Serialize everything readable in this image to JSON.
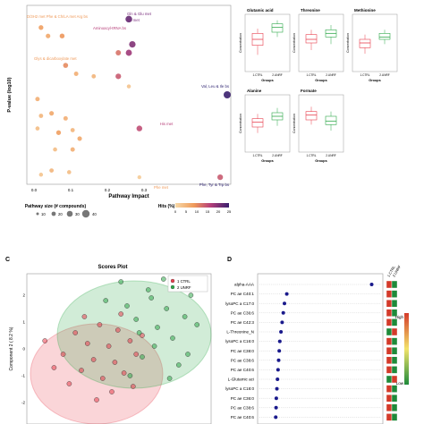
{
  "colors": {
    "ctrl": "#e8404f",
    "unrf": "#2fa84a",
    "dot_blue": "#1a1a8c",
    "heat_high": "#d43a2a",
    "heat_low": "#1e8a3a"
  },
  "chart_data": [
    {
      "panel": "A",
      "type": "scatter",
      "title": "",
      "xlabel": "Pathway Impact",
      "ylabel": "P-value (log10)",
      "xlim": [
        0,
        0.55
      ],
      "xticks": [
        "0.0",
        "0.1",
        "0.2",
        "0.3"
      ],
      "legend_size_title": "Pathway size (# compounds)",
      "legend_sizes": [
        "10",
        "20",
        "30",
        "40"
      ],
      "legend_color_title": "Hits (%)",
      "legend_color_ticks": [
        "0",
        "5",
        "10",
        "15",
        "20",
        "25"
      ],
      "annotations": [
        "D/3H2 met Phe & Ch/LA met Arg bs",
        "Gln & Glu met",
        "N2 met",
        "Aminoacyl-tRNA bs",
        "Glys & dicarboxylate met",
        "Val, Leu & Ile bs",
        "His met",
        "Phe met",
        "Phe, Tyr & Trp bs"
      ],
      "points": [
        {
          "x": 0.02,
          "y": 1.8,
          "hits": 8
        },
        {
          "x": 0.04,
          "y": 1.7,
          "hits": 7
        },
        {
          "x": 0.08,
          "y": 1.7,
          "hits": 9
        },
        {
          "x": 0.27,
          "y": 1.9,
          "hits": 22
        },
        {
          "x": 0.28,
          "y": 1.6,
          "hits": 20
        },
        {
          "x": 0.27,
          "y": 1.5,
          "hits": 18
        },
        {
          "x": 0.24,
          "y": 1.5,
          "hits": 12
        },
        {
          "x": 0.09,
          "y": 1.35,
          "hits": 10
        },
        {
          "x": 0.12,
          "y": 1.25,
          "hits": 6
        },
        {
          "x": 0.17,
          "y": 1.22,
          "hits": 5
        },
        {
          "x": 0.24,
          "y": 1.22,
          "hits": 14
        },
        {
          "x": 0.27,
          "y": 1.1,
          "hits": 3
        },
        {
          "x": 0.55,
          "y": 1.0,
          "hits": 25
        },
        {
          "x": 0.01,
          "y": 0.95,
          "hits": 6
        },
        {
          "x": 0.02,
          "y": 0.75,
          "hits": 5
        },
        {
          "x": 0.05,
          "y": 0.78,
          "hits": 7
        },
        {
          "x": 0.09,
          "y": 0.72,
          "hits": 6
        },
        {
          "x": 0.01,
          "y": 0.6,
          "hits": 4
        },
        {
          "x": 0.07,
          "y": 0.55,
          "hits": 8
        },
        {
          "x": 0.11,
          "y": 0.58,
          "hits": 5
        },
        {
          "x": 0.13,
          "y": 0.48,
          "hits": 7
        },
        {
          "x": 0.3,
          "y": 0.6,
          "hits": 15
        },
        {
          "x": 0.06,
          "y": 0.35,
          "hits": 4
        },
        {
          "x": 0.11,
          "y": 0.35,
          "hits": 6
        },
        {
          "x": 0.05,
          "y": 0.1,
          "hits": 5
        },
        {
          "x": 0.1,
          "y": 0.08,
          "hits": 4
        },
        {
          "x": 0.02,
          "y": 0.05,
          "hits": 3
        },
        {
          "x": 0.3,
          "y": 0.02,
          "hits": 2
        },
        {
          "x": 0.53,
          "y": 0.02,
          "hits": 14
        }
      ]
    },
    {
      "panel": "B",
      "type": "box",
      "plots": [
        {
          "title": "Glutamic acid",
          "xlabel": "Groups",
          "ylabel": "Concentration",
          "groups": [
            "1.CTRL",
            "2.UNRF"
          ]
        },
        {
          "title": "Threonine",
          "xlabel": "Groups",
          "ylabel": "Concentration",
          "groups": [
            "1.CTRL",
            "2.UNRF"
          ]
        },
        {
          "title": "Methionine",
          "xlabel": "Groups",
          "ylabel": "Concentration",
          "groups": [
            "1.CTRL",
            "2.UNRF"
          ]
        },
        {
          "title": "Alanine",
          "xlabel": "Groups",
          "ylabel": "Concentration",
          "groups": [
            "1.CTRL",
            "2.UNRF"
          ]
        },
        {
          "title": "Formate",
          "xlabel": "Groups",
          "ylabel": "Concentration",
          "groups": [
            "1.CTRL",
            "2.UNRF"
          ]
        }
      ]
    },
    {
      "panel": "C",
      "type": "scatter",
      "title": "Scores Plot",
      "xlabel": "",
      "ylabel": "Component 2 ( 8.2 %)",
      "yticks": [
        "2",
        "1",
        "0",
        "-1",
        "-2"
      ],
      "legend": [
        "1 CTRL",
        "2 UNRF"
      ],
      "series": [
        {
          "name": "1 CTRL",
          "points": [
            [
              -2.2,
              0.3
            ],
            [
              -1.6,
              -0.2
            ],
            [
              -1.2,
              0.6
            ],
            [
              -1.0,
              -0.8
            ],
            [
              -0.8,
              0.2
            ],
            [
              -0.6,
              -0.4
            ],
            [
              -0.4,
              0.9
            ],
            [
              -0.3,
              -1.1
            ],
            [
              -0.1,
              0.1
            ],
            [
              0.1,
              -0.5
            ],
            [
              0.2,
              0.7
            ],
            [
              0.4,
              -0.9
            ],
            [
              0.6,
              0.3
            ],
            [
              0.8,
              -0.2
            ],
            [
              -1.4,
              -1.3
            ],
            [
              -0.9,
              1.2
            ],
            [
              0.0,
              -1.6
            ],
            [
              0.3,
              1.3
            ],
            [
              -1.9,
              -0.7
            ],
            [
              1.0,
              0.5
            ],
            [
              -0.5,
              -1.9
            ],
            [
              0.7,
              -1.4
            ]
          ]
        },
        {
          "name": "2 UNRF",
          "points": [
            [
              0.5,
              1.6
            ],
            [
              0.8,
              1.1
            ],
            [
              1.2,
              2.2
            ],
            [
              1.5,
              0.8
            ],
            [
              1.8,
              1.5
            ],
            [
              2.0,
              0.4
            ],
            [
              2.4,
              1.2
            ],
            [
              2.6,
              2.0
            ],
            [
              1.0,
              -0.3
            ],
            [
              1.4,
              0.1
            ],
            [
              2.2,
              -0.6
            ],
            [
              0.3,
              2.5
            ],
            [
              1.7,
              2.6
            ],
            [
              2.8,
              0.9
            ],
            [
              0.9,
              0.6
            ],
            [
              1.9,
              -1.1
            ],
            [
              -0.2,
              1.8
            ],
            [
              0.6,
              -1.0
            ],
            [
              2.5,
              -0.2
            ],
            [
              1.3,
              1.9
            ]
          ]
        }
      ]
    },
    {
      "panel": "D",
      "type": "dot",
      "columns": [
        "1.CTRL",
        "2.UNRF"
      ],
      "heat_legend": [
        "High",
        "Low"
      ],
      "rows": [
        {
          "label": "alpha-AAA",
          "value": 0.95,
          "high": 1
        },
        {
          "label": "PC ae C40:1",
          "value": 0.22,
          "high": 1
        },
        {
          "label": "lysoPC a C17:0",
          "value": 0.2,
          "high": 1
        },
        {
          "label": "PC ae C36:6",
          "value": 0.19,
          "high": 1
        },
        {
          "label": "PC ae C42:3",
          "value": 0.18,
          "high": 1
        },
        {
          "label": "L-Threonine_N",
          "value": 0.17,
          "high": 2
        },
        {
          "label": "lysoPC a C16:0",
          "value": 0.16,
          "high": 1
        },
        {
          "label": "PC ae C38:0",
          "value": 0.155,
          "high": 1
        },
        {
          "label": "PC ae C38:6",
          "value": 0.15,
          "high": 1
        },
        {
          "label": "PC ae C40:6",
          "value": 0.145,
          "high": 1
        },
        {
          "label": "L-Glutamic aci",
          "value": 0.14,
          "high": 2
        },
        {
          "label": "lysoPC a C18:0",
          "value": 0.135,
          "high": 1
        },
        {
          "label": "PC ae C36:0",
          "value": 0.13,
          "high": 1
        },
        {
          "label": "PC ae C38:6",
          "value": 0.128,
          "high": 1
        },
        {
          "label": "PC ae C40:6",
          "value": 0.125,
          "high": 1
        }
      ]
    }
  ],
  "panel_labels": [
    "C",
    "D"
  ]
}
